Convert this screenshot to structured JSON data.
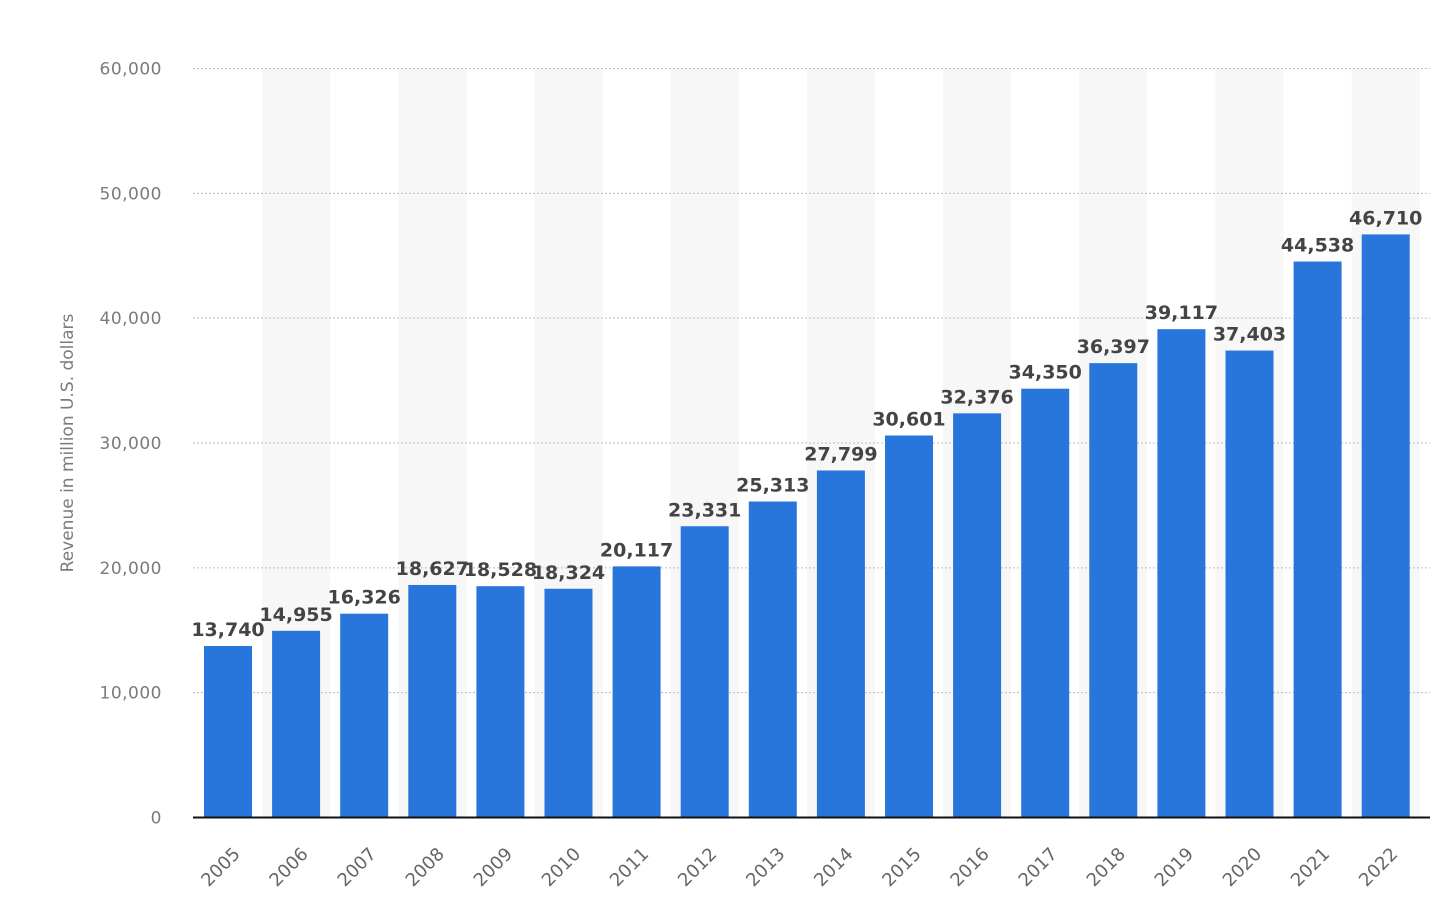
{
  "chart_data": {
    "type": "bar",
    "ylabel": "Revenue in million U.S. dollars",
    "xlabel": "",
    "ylim": [
      0,
      60000
    ],
    "yticks": [
      0,
      10000,
      20000,
      30000,
      40000,
      50000,
      60000
    ],
    "ytick_labels": [
      "0",
      "10,000",
      "20,000",
      "30,000",
      "40,000",
      "50,000",
      "60,000"
    ],
    "grid": true,
    "categories": [
      "2005",
      "2006",
      "2007",
      "2008",
      "2009",
      "2010",
      "2011",
      "2012",
      "2013",
      "2014",
      "2015",
      "2016",
      "2017",
      "2018",
      "2019",
      "2020",
      "2021",
      "2022"
    ],
    "values": [
      13740,
      14955,
      16326,
      18627,
      18528,
      18324,
      20117,
      23331,
      25313,
      27799,
      30601,
      32376,
      34350,
      36397,
      39117,
      37403,
      44538,
      46710
    ],
    "value_labels": [
      "13,740",
      "14,955",
      "16,326",
      "18,627",
      "18,528",
      "18,324",
      "20,117",
      "23,331",
      "25,313",
      "27,799",
      "30,601",
      "32,376",
      "34,350",
      "36,397",
      "39,117",
      "37,403",
      "44,538",
      "46,710"
    ],
    "colors": {
      "bar": "#2875db",
      "band": "#f7f7f7",
      "grid": "#bdbdbd",
      "axis": "#111111"
    }
  }
}
